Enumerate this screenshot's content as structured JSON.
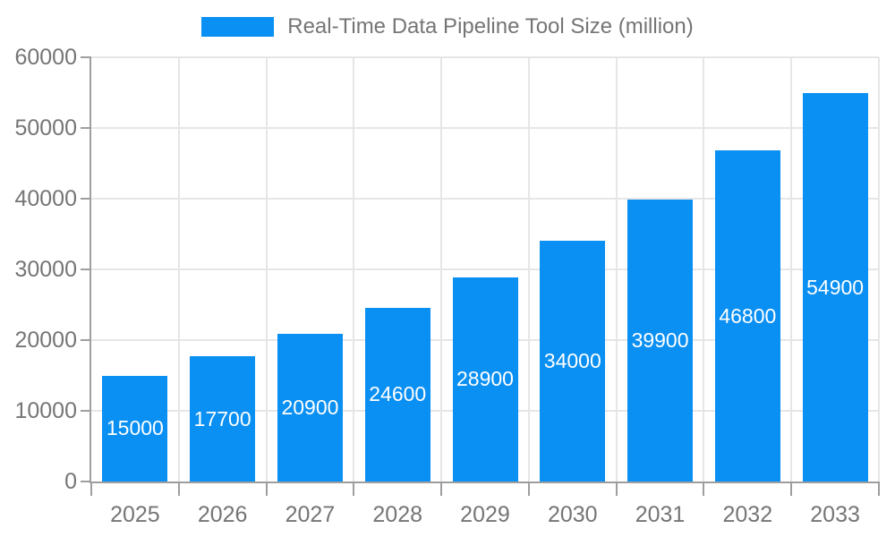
{
  "chart_data": {
    "type": "bar",
    "title": "Real-Time Data Pipeline Tool Size (million)",
    "categories": [
      "2025",
      "2026",
      "2027",
      "2028",
      "2029",
      "2030",
      "2031",
      "2032",
      "2033"
    ],
    "values": [
      15000,
      17700,
      20900,
      24600,
      28900,
      34000,
      39900,
      46800,
      54900
    ],
    "bar_value_labels": [
      "15000",
      "17700",
      "20900",
      "24600",
      "28900",
      "34000",
      "39900",
      "46800",
      "54900"
    ],
    "xlabel": "",
    "ylabel": "",
    "ylim": [
      0,
      60000
    ],
    "ytick_interval": 10000,
    "ytick_labels": [
      "0",
      "10000",
      "20000",
      "30000",
      "40000",
      "50000",
      "60000"
    ],
    "grid": true,
    "legend_position": "top",
    "colors": {
      "bar": "#0a8ff2",
      "grid": "#e6e6e6",
      "axis": "#9e9e9e",
      "tick_text": "#757575",
      "legend_text": "#757575",
      "bar_label": "#ffffff",
      "background": "#ffffff"
    }
  }
}
